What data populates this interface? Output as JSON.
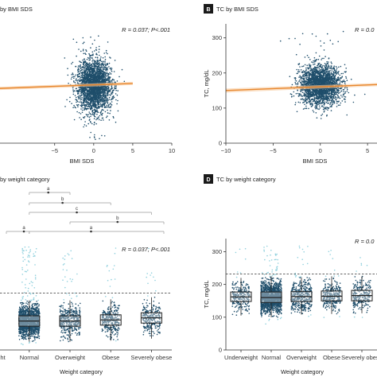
{
  "colors": {
    "dot": "#1f4e6b",
    "dot_outlier": "#8fd0dd",
    "fit": "#e8872e",
    "fit_band": "#f6c89a",
    "axis": "#333333",
    "box": "#222222",
    "badge": "#1a1a1a",
    "bracket": "#9a9a9a"
  },
  "chart_data": [
    {
      "panel": "A",
      "type": "scatter",
      "title": "by BMI SDS",
      "annotation": "R = 0.037; P<.001",
      "xlabel": "BMI SDS",
      "ylabel": "",
      "x_ticks": [
        -5,
        0,
        5,
        10
      ],
      "xlim": [
        -12,
        10
      ],
      "cloud": {
        "center_x": 0,
        "spread_x": 1.1,
        "center_y": 0,
        "spread_y": 1
      },
      "fit_line": {
        "x": [
          -12,
          5
        ],
        "y": [
          -0.25,
          0.18
        ]
      }
    },
    {
      "panel": "B",
      "type": "scatter",
      "title": "TC by BMI SDS",
      "annotation": "R = 0.0",
      "xlabel": "BMI SDS",
      "ylabel": "TC, mg/dL",
      "x_ticks": [
        -10,
        -5,
        0,
        5
      ],
      "xlim": [
        -10,
        6
      ],
      "y_ticks": [
        0,
        100,
        200,
        300
      ],
      "ylim": [
        0,
        340
      ],
      "cloud": {
        "center_x": 0,
        "spread_x": 1.1,
        "center_y": 165,
        "spread_y": 28
      },
      "fit_line": {
        "x": [
          -10,
          6
        ],
        "y": [
          150,
          167
        ]
      }
    },
    {
      "panel": "C",
      "type": "box",
      "title": "by weight category",
      "annotation": "R = 0.037; P<.001",
      "xlabel": "Weight category",
      "ylabel": "",
      "categories": [
        "Underweight",
        "Normal",
        "Overweight",
        "Obese",
        "Severely obese"
      ],
      "reference_line": 0.55,
      "significance": [
        {
          "label": "a",
          "from": 1,
          "to": 2
        },
        {
          "label": "b",
          "from": 1,
          "to": 3
        },
        {
          "label": "c",
          "from": 1,
          "to": 4
        },
        {
          "label": "b",
          "from": 2,
          "to": 5
        },
        {
          "label": "a",
          "from": 0,
          "to": 1
        },
        {
          "label": "a",
          "from": 1,
          "to": 5
        }
      ]
    },
    {
      "panel": "D",
      "type": "box",
      "title": "TC by weight category",
      "annotation": "R = 0.0",
      "xlabel": "Weight category",
      "ylabel": "TC, mg/dL",
      "categories": [
        "Underweight",
        "Normal",
        "Overweight",
        "Obese",
        "Severely obese"
      ],
      "y_ticks": [
        0,
        100,
        200,
        300
      ],
      "ylim": [
        0,
        340
      ],
      "reference_line": 232,
      "boxes": [
        {
          "q1": 148,
          "median": 162,
          "q3": 177,
          "whisker_low": 105,
          "whisker_high": 220
        },
        {
          "q1": 145,
          "median": 160,
          "q3": 177,
          "whisker_low": 100,
          "whisker_high": 225
        },
        {
          "q1": 148,
          "median": 163,
          "q3": 178,
          "whisker_low": 108,
          "whisker_high": 222
        },
        {
          "q1": 150,
          "median": 164,
          "q3": 180,
          "whisker_low": 110,
          "whisker_high": 225
        },
        {
          "q1": 150,
          "median": 166,
          "q3": 182,
          "whisker_low": 112,
          "whisker_high": 225
        }
      ]
    }
  ]
}
